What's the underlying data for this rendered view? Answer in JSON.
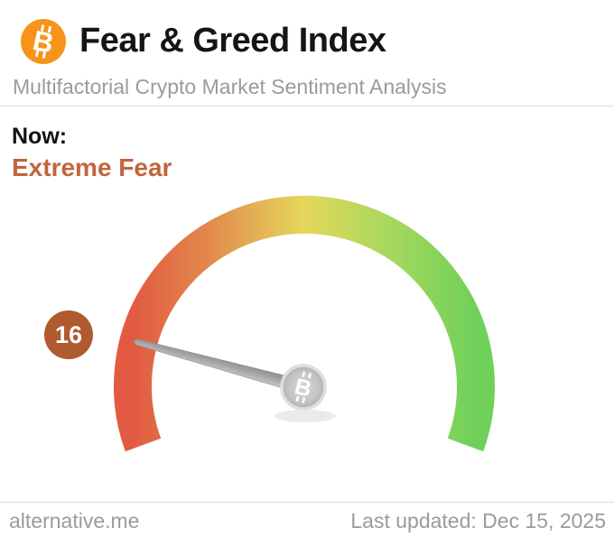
{
  "header": {
    "title": "Fear & Greed Index",
    "subtitle": "Multifactorial Crypto Market Sentiment Analysis",
    "bitcoin_glyph": "B",
    "logo_color": "#f7931a"
  },
  "status": {
    "now_label": "Now:",
    "sentiment": "Extreme Fear",
    "sentiment_color": "#c1653a"
  },
  "chart_data": {
    "type": "gauge",
    "title": "Fear & Greed Index",
    "value": 16,
    "min": 0,
    "max": 100,
    "sentiment_label": "Extreme Fear",
    "start_angle_deg": 200,
    "end_angle_deg": -20,
    "value_badge_color": "#b05a30",
    "gradient_stops": [
      {
        "offset": "0%",
        "color": "#e25a42"
      },
      {
        "offset": "22%",
        "color": "#e2894d"
      },
      {
        "offset": "50%",
        "color": "#e5d75b"
      },
      {
        "offset": "75%",
        "color": "#a6d85c"
      },
      {
        "offset": "100%",
        "color": "#6fd05a"
      }
    ]
  },
  "footer": {
    "source": "alternative.me",
    "last_updated": "Last updated: Dec 15, 2025"
  }
}
